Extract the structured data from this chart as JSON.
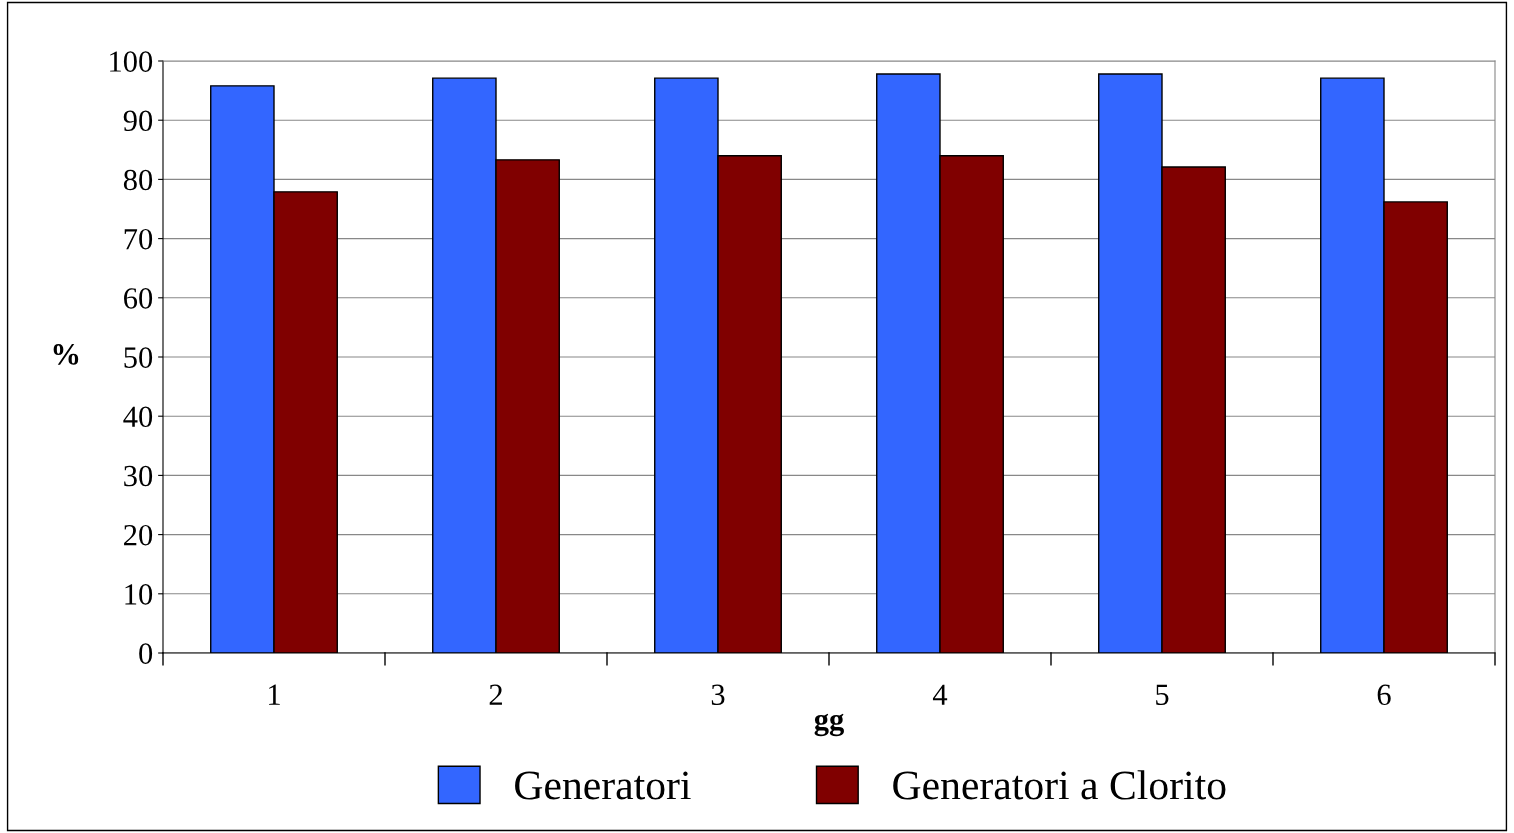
{
  "chart_data": {
    "type": "bar",
    "xlabel": "gg",
    "ylabel": "%",
    "categories": [
      "1",
      "2",
      "3",
      "4",
      "5",
      "6"
    ],
    "series": [
      {
        "name": "Generatori",
        "color": "#3366ff",
        "values": [
          95.8,
          97.1,
          97.1,
          97.8,
          97.8,
          97.1
        ]
      },
      {
        "name": "Generatori a Clorito",
        "color": "#800000",
        "values": [
          77.9,
          83.3,
          84.0,
          84.0,
          82.1,
          76.2
        ]
      }
    ],
    "ylim": [
      0,
      100
    ],
    "yticks": [
      0,
      10,
      20,
      30,
      40,
      50,
      60,
      70,
      80,
      90,
      100
    ],
    "grid": "y",
    "legend": "bottom"
  }
}
